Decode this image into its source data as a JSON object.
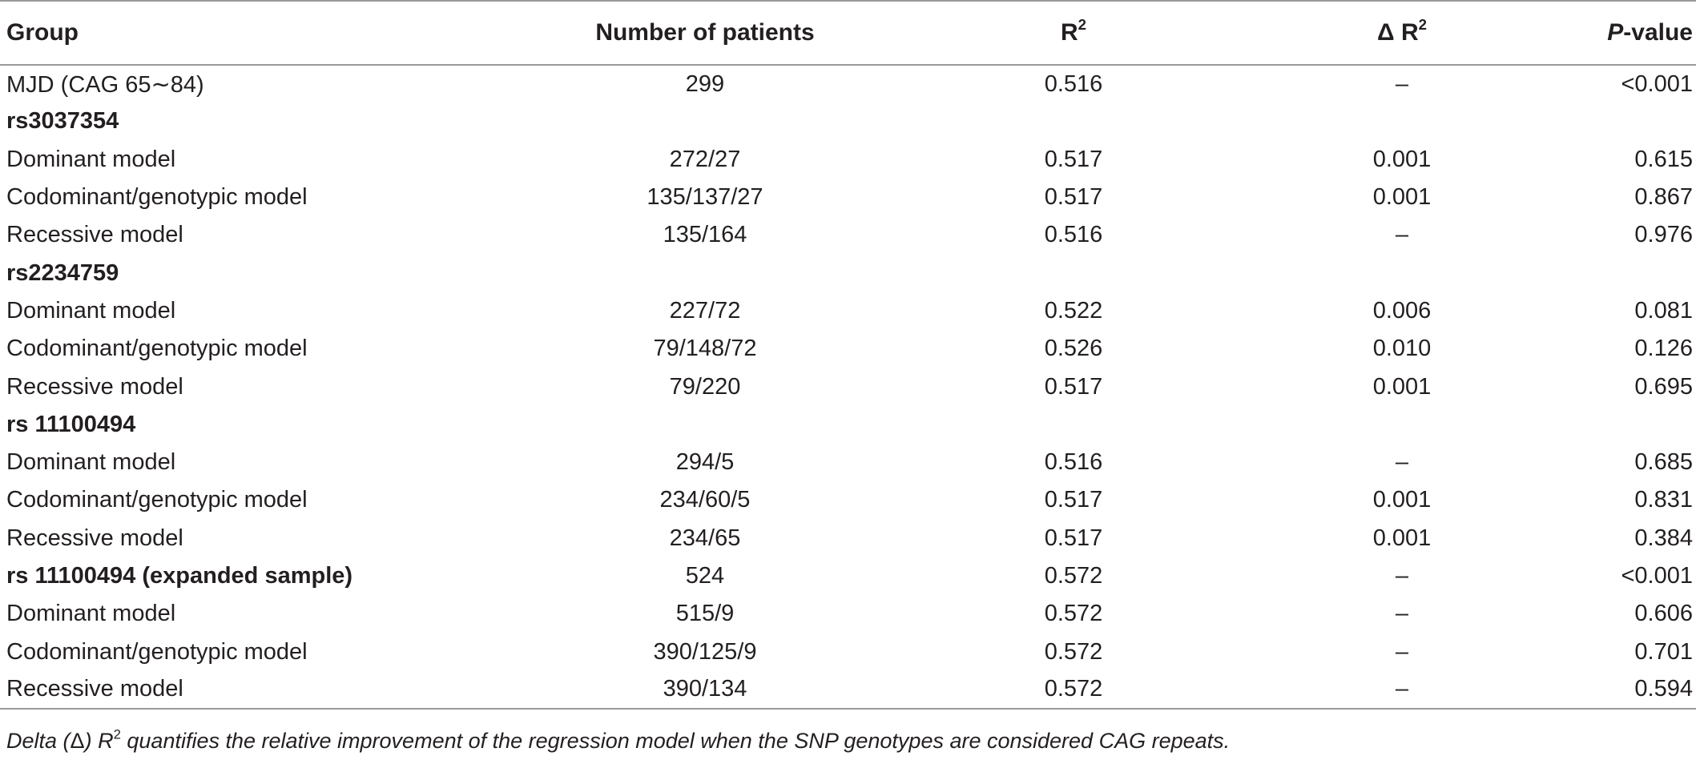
{
  "headers": {
    "group": "Group",
    "number_of_patients": "Number of patients",
    "r2_base": "R",
    "r2_sup": "2",
    "delta_r2_base": "Δ R",
    "delta_r2_sup": "2",
    "pvalue_italic": "P",
    "pvalue_rest": "-value"
  },
  "rows": [
    {
      "group": "MJD (CAG 65∼84)",
      "bold": false,
      "n": "299",
      "r2": "0.516",
      "dr2": "–",
      "p": "<0.001"
    },
    {
      "group": "rs3037354",
      "bold": true,
      "n": "",
      "r2": "",
      "dr2": "",
      "p": ""
    },
    {
      "group": "Dominant model",
      "bold": false,
      "n": "272/27",
      "r2": "0.517",
      "dr2": "0.001",
      "p": "0.615"
    },
    {
      "group": "Codominant/genotypic model",
      "bold": false,
      "n": "135/137/27",
      "r2": "0.517",
      "dr2": "0.001",
      "p": "0.867"
    },
    {
      "group": "Recessive model",
      "bold": false,
      "n": "135/164",
      "r2": "0.516",
      "dr2": "–",
      "p": "0.976"
    },
    {
      "group": "rs2234759",
      "bold": true,
      "n": "",
      "r2": "",
      "dr2": "",
      "p": ""
    },
    {
      "group": "Dominant model",
      "bold": false,
      "n": "227/72",
      "r2": "0.522",
      "dr2": "0.006",
      "p": "0.081"
    },
    {
      "group": "Codominant/genotypic model",
      "bold": false,
      "n": "79/148/72",
      "r2": "0.526",
      "dr2": "0.010",
      "p": "0.126"
    },
    {
      "group": "Recessive model",
      "bold": false,
      "n": "79/220",
      "r2": "0.517",
      "dr2": "0.001",
      "p": "0.695"
    },
    {
      "group": "rs 11100494",
      "bold": true,
      "n": "",
      "r2": "",
      "dr2": "",
      "p": ""
    },
    {
      "group": "Dominant model",
      "bold": false,
      "n": "294/5",
      "r2": "0.516",
      "dr2": "–",
      "p": "0.685"
    },
    {
      "group": "Codominant/genotypic model",
      "bold": false,
      "n": "234/60/5",
      "r2": "0.517",
      "dr2": "0.001",
      "p": "0.831"
    },
    {
      "group": "Recessive model",
      "bold": false,
      "n": "234/65",
      "r2": "0.517",
      "dr2": "0.001",
      "p": "0.384"
    },
    {
      "group": "rs 11100494 (expanded sample)",
      "bold": true,
      "n": "524",
      "r2": "0.572",
      "dr2": "–",
      "p": "<0.001"
    },
    {
      "group": "Dominant model",
      "bold": false,
      "n": "515/9",
      "r2": "0.572",
      "dr2": "–",
      "p": "0.606"
    },
    {
      "group": "Codominant/genotypic model",
      "bold": false,
      "n": "390/125/9",
      "r2": "0.572",
      "dr2": "–",
      "p": "0.701"
    },
    {
      "group": "Recessive model",
      "bold": false,
      "n": "390/134",
      "r2": "0.572",
      "dr2": "–",
      "p": "0.594"
    }
  ],
  "footnote": {
    "part1": "Delta (",
    "delta_symbol": "Δ",
    "part2": ") ",
    "r": "R",
    "r_sup": "2",
    "part3": " quantifies the relative improvement of the regression model when the SNP genotypes are considered CAG repeats."
  },
  "colors": {
    "text": "#231f20",
    "rule": "#9a9a9a"
  }
}
